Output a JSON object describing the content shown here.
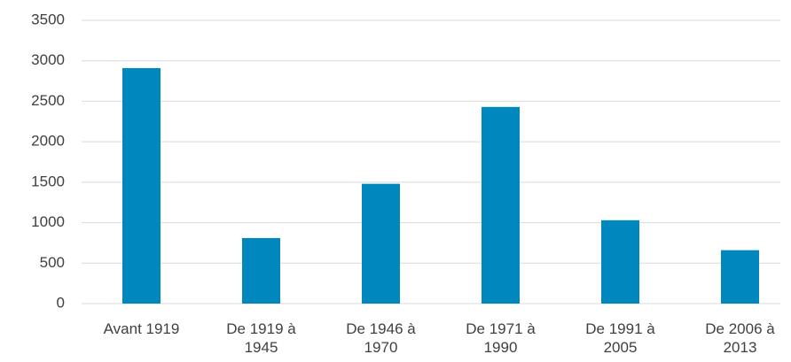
{
  "chart_data": {
    "type": "bar",
    "categories": [
      "Avant 1919",
      "De 1919 à 1945",
      "De 1946 à 1970",
      "De 1971 à 1990",
      "De 1991 à 2005",
      "De 2006 à 2013"
    ],
    "values": [
      2910,
      810,
      1480,
      2430,
      1030,
      660
    ],
    "color": "#0087be",
    "ylim": [
      0,
      3500
    ],
    "yticks": [
      0,
      500,
      1000,
      1500,
      2000,
      2500,
      3000,
      3500
    ],
    "grid": true
  }
}
